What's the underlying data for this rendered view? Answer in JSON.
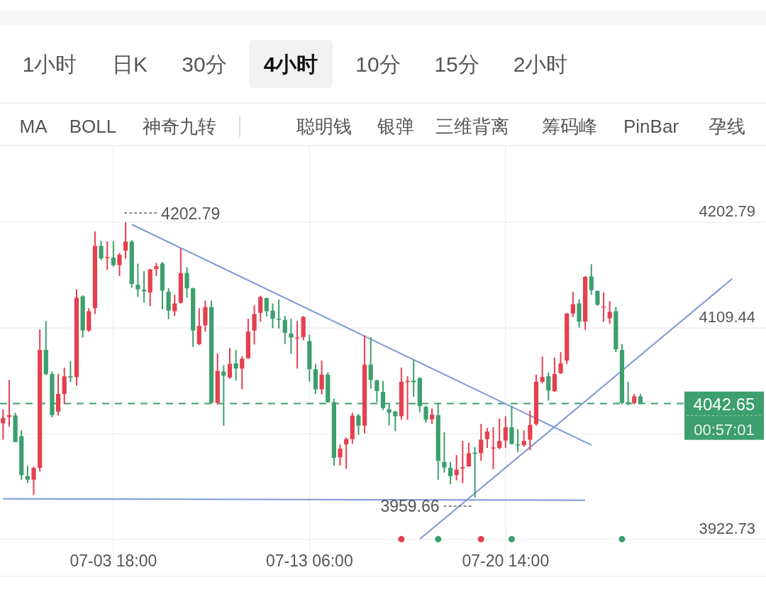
{
  "chart_data": {
    "type": "candlestick",
    "categories": [
      null,
      null,
      null,
      null,
      null,
      null,
      null,
      null,
      null,
      null,
      null,
      null,
      null,
      null,
      null,
      null,
      null,
      null,
      "07-03 18:00",
      null,
      null,
      null,
      null,
      null,
      null,
      null,
      null,
      null,
      null,
      null,
      null,
      null,
      null,
      null,
      null,
      null,
      null,
      null,
      null,
      null,
      null,
      null,
      null,
      null,
      null,
      null,
      null,
      null,
      null,
      null,
      "07-13 06:00",
      null,
      null,
      null,
      null,
      null,
      null,
      null,
      null,
      null,
      null,
      null,
      null,
      null,
      null,
      null,
      null,
      null,
      null,
      null,
      null,
      null,
      null,
      null,
      null,
      null,
      null,
      null,
      null,
      null,
      null,
      null,
      "07-20 14:00",
      null,
      null,
      null,
      null,
      null,
      null,
      null,
      null,
      null,
      null,
      null,
      null,
      null,
      null,
      null,
      null,
      null,
      null,
      null,
      null,
      null,
      null,
      null,
      null,
      null,
      null,
      null,
      null,
      null,
      null,
      null,
      null,
      null,
      null,
      null,
      null,
      null,
      null,
      null,
      null,
      null,
      null
    ],
    "ohlc": [
      [
        4025.3,
        4037.7,
        4010.8,
        4030.0
      ],
      [
        4030.9,
        4063.6,
        4022.2,
        4032.5
      ],
      [
        4032.1,
        4034.6,
        4008.7,
        4008.7
      ],
      [
        4013.9,
        4019.1,
        3975.5,
        3979.6
      ],
      [
        3978.6,
        3987.9,
        3972.4,
        3975.5
      ],
      [
        3975.5,
        3986.9,
        3962.0,
        3985.9
      ],
      [
        3985.9,
        4108.2,
        3982.8,
        4090.0
      ],
      [
        4090.0,
        4115.5,
        4067.8,
        4068.8
      ],
      [
        4068.8,
        4070.9,
        4030.5,
        4032.5
      ],
      [
        4035.6,
        4068.8,
        4032.1,
        4051.2
      ],
      [
        4051.2,
        4074.4,
        4042.5,
        4066.8
      ],
      [
        4066.8,
        4080.2,
        4061.6,
        4065.7
      ],
      [
        4066.1,
        4143.5,
        4058.5,
        4136.2
      ],
      [
        4137.3,
        4138.3,
        4101.0,
        4107.2
      ],
      [
        4107.2,
        4126.9,
        4106.2,
        4124.2
      ],
      [
        4126.9,
        4194.7,
        4121.7,
        4181.9
      ],
      [
        4181.9,
        4186.4,
        4169.4,
        4170.9
      ],
      [
        4171.5,
        4186.0,
        4160.7,
        4172.1
      ],
      [
        4171.5,
        4186.0,
        4163.6,
        4164.9
      ],
      [
        4164.9,
        4175.6,
        4155.3,
        4174.0
      ],
      [
        4177.7,
        4202.79,
        4170.5,
        4185.6
      ],
      [
        4185.6,
        4187.0,
        4144.9,
        4148.3
      ],
      [
        4147.6,
        4166.3,
        4136.9,
        4143.5
      ],
      [
        4143.3,
        4159.5,
        4131.7,
        4141.8
      ],
      [
        4140.8,
        4161.5,
        4128.6,
        4161.1
      ],
      [
        4161.5,
        4166.9,
        4155.3,
        4164.0
      ],
      [
        4166.3,
        4167.8,
        4125.9,
        4142.5
      ],
      [
        4141.4,
        4144.5,
        4117.2,
        4124.8
      ],
      [
        4124.2,
        4138.7,
        4120.1,
        4131.1
      ],
      [
        4131.7,
        4179.8,
        4131.1,
        4158.0
      ],
      [
        4158.0,
        4163.2,
        4136.2,
        4144.5
      ],
      [
        4144.5,
        4144.9,
        4092.7,
        4107.2
      ],
      [
        4095.2,
        4126.9,
        4094.3,
        4111.3
      ],
      [
        4111.8,
        4133.7,
        4106.2,
        4127.9
      ],
      [
        4127.9,
        4133.7,
        4042.9,
        4043.3
      ],
      [
        4043.3,
        4086.9,
        4041.9,
        4071.5
      ],
      [
        4070.9,
        4076.5,
        4023.2,
        4067.4
      ],
      [
        4065.7,
        4091.6,
        4064.7,
        4077.8
      ],
      [
        4078.2,
        4090.0,
        4063.2,
        4073.6
      ],
      [
        4073.6,
        4084.4,
        4055.3,
        4082.3
      ],
      [
        4082.7,
        4117.6,
        4082.3,
        4106.2
      ],
      [
        4107.2,
        4129.6,
        4094.8,
        4121.7
      ],
      [
        4122.8,
        4137.9,
        4115.1,
        4136.7
      ],
      [
        4135.8,
        4136.2,
        4119.6,
        4124.2
      ],
      [
        4124.8,
        4131.1,
        4109.3,
        4117.6
      ],
      [
        4117.6,
        4134.6,
        4108.9,
        4116.9
      ],
      [
        4116.5,
        4120.1,
        4095.2,
        4105.1
      ],
      [
        4104.5,
        4117.6,
        4086.5,
        4101.0
      ],
      [
        4100.6,
        4115.5,
        4073.6,
        4101.0
      ],
      [
        4101.4,
        4120.1,
        4098.5,
        4119.2
      ],
      [
        4097.9,
        4103.5,
        4062.0,
        4073.0
      ],
      [
        4073.0,
        4077.8,
        4051.2,
        4055.3
      ],
      [
        4055.3,
        4080.7,
        4050.8,
        4068.2
      ],
      [
        4068.2,
        4070.3,
        4043.3,
        4043.9
      ],
      [
        4043.9,
        4047.1,
        3987.9,
        3994.8
      ],
      [
        3995.2,
        4006.6,
        3987.9,
        4002.9
      ],
      [
        4006.6,
        4012.8,
        3985.2,
        4011.4
      ],
      [
        4011.4,
        4034.6,
        4007.2,
        4032.1
      ],
      [
        4032.1,
        4033.6,
        4014.9,
        4023.2
      ],
      [
        4023.2,
        4103.1,
        4016.4,
        4077.1
      ],
      [
        4077.1,
        4101.4,
        4055.8,
        4063.6
      ],
      [
        4063.2,
        4063.6,
        4043.9,
        4053.7
      ],
      [
        4052.9,
        4062.6,
        4037.1,
        4038.8
      ],
      [
        4037.7,
        4042.9,
        4023.2,
        4034.6
      ],
      [
        4035.6,
        4036.3,
        4018.4,
        4031.5
      ],
      [
        4031.5,
        4074.4,
        4028.4,
        4062.0
      ],
      [
        4062.0,
        4066.8,
        4028.4,
        4062.6
      ],
      [
        4063.0,
        4081.3,
        4048.7,
        4061.6
      ],
      [
        4065.1,
        4066.1,
        4035.0,
        4040.4
      ],
      [
        4039.8,
        4040.8,
        4025.9,
        4028.4
      ],
      [
        4028.8,
        4038.3,
        4024.7,
        4033.0
      ],
      [
        4032.5,
        4043.3,
        3975.5,
        3992.1
      ],
      [
        3991.1,
        4017.6,
        3981.7,
        3986.3
      ],
      [
        3985.9,
        3991.1,
        3971.4,
        3978.6
      ],
      [
        3979.6,
        3997.3,
        3974.9,
        3984.4
      ],
      [
        3985.2,
        4009.7,
        3972.4,
        3986.5
      ],
      [
        3987.3,
        4008.1,
        3986.9,
        3998.9
      ],
      [
        3999.4,
        4004.5,
        3959.66,
        3998.3
      ],
      [
        3998.9,
        4024.7,
        3992.1,
        4010.8
      ],
      [
        4011.4,
        4021.1,
        4003.5,
        4018.0
      ],
      [
        4003.1,
        4021.8,
        3984.8,
        4003.9
      ],
      [
        4003.5,
        4029.4,
        4002.5,
        4009.7
      ],
      [
        4010.1,
        4031.5,
        4003.5,
        4021.8
      ],
      [
        4021.8,
        4040.8,
        4006.6,
        4007.0
      ],
      [
        4006.6,
        4020.1,
        3999.8,
        4006.0
      ],
      [
        4006.0,
        4019.1,
        4004.5,
        4009.7
      ],
      [
        4010.8,
        4036.3,
        4001.4,
        4023.8
      ],
      [
        4024.7,
        4068.2,
        4023.2,
        4062.0
      ],
      [
        4062.0,
        4084.4,
        4060.5,
        4066.1
      ],
      [
        4066.8,
        4070.3,
        4045.4,
        4054.3
      ],
      [
        4053.7,
        4083.3,
        4052.9,
        4068.8
      ],
      [
        4069.5,
        4088.1,
        4068.8,
        4078.2
      ],
      [
        4080.7,
        4122.8,
        4077.8,
        4122.1
      ],
      [
        4122.1,
        4141.4,
        4119.2,
        4130.4
      ],
      [
        4131.1,
        4134.6,
        4109.7,
        4115.1
      ],
      [
        4115.1,
        4155.3,
        4107.8,
        4154.5
      ],
      [
        4154.9,
        4165.7,
        4138.7,
        4142.9
      ],
      [
        4142.0,
        4142.5,
        4129.0,
        4130.0
      ],
      [
        4127.9,
        4140.8,
        4114.9,
        4128.4
      ],
      [
        4118.0,
        4133.1,
        4113.0,
        4123.8
      ],
      [
        4124.2,
        4127.9,
        4088.1,
        4090.6
      ],
      [
        4090.0,
        4095.2,
        4041.9,
        4043.3
      ],
      [
        4043.9,
        4062.0,
        4041.2,
        4043.3
      ],
      [
        4043.3,
        4051.2,
        4041.9,
        4049.1
      ],
      [
        4049.1,
        4051.2,
        4042.65,
        4042.65
      ],
      null,
      null,
      null,
      null,
      null,
      null,
      null,
      null,
      null,
      null,
      null,
      null,
      null,
      null,
      null,
      null,
      null,
      null,
      null,
      null
    ],
    "colors": [
      "#e4404f",
      "#e4404f",
      "#3c9f6c",
      "#3c9f6c",
      "#3c9f6c",
      "#e4404f",
      "#e4404f",
      "#3c9f6c",
      "#3c9f6c",
      "#e4404f",
      "#e4404f",
      "#3c9f6c",
      "#e4404f",
      "#3c9f6c",
      "#e4404f",
      "#e4404f",
      "#3c9f6c",
      "#e4404f",
      "#3c9f6c",
      "#e4404f",
      "#e4404f",
      "#3c9f6c",
      "#3c9f6c",
      "#3c9f6c",
      "#e4404f",
      "#e4404f",
      "#3c9f6c",
      "#3c9f6c",
      "#e4404f",
      "#e4404f",
      "#3c9f6c",
      "#3c9f6c",
      "#e4404f",
      "#e4404f",
      "#3c9f6c",
      "#e4404f",
      "#3c9f6c",
      "#e4404f",
      "#3c9f6c",
      "#e4404f",
      "#e4404f",
      "#e4404f",
      "#e4404f",
      "#3c9f6c",
      "#3c9f6c",
      "#3c9f6c",
      "#3c9f6c",
      "#3c9f6c",
      "#e4404f",
      "#e4404f",
      "#3c9f6c",
      "#3c9f6c",
      "#e4404f",
      "#3c9f6c",
      "#3c9f6c",
      "#e4404f",
      "#e4404f",
      "#e4404f",
      "#3c9f6c",
      "#e4404f",
      "#3c9f6c",
      "#3c9f6c",
      "#3c9f6c",
      "#3c9f6c",
      "#3c9f6c",
      "#e4404f",
      "#e4404f",
      "#3c9f6c",
      "#3c9f6c",
      "#3c9f6c",
      "#e4404f",
      "#3c9f6c",
      "#3c9f6c",
      "#3c9f6c",
      "#e4404f",
      "#e4404f",
      "#e4404f",
      "#3c9f6c",
      "#e4404f",
      "#e4404f",
      "#e4404f",
      "#e4404f",
      "#e4404f",
      "#3c9f6c",
      "#3c9f6c",
      "#e4404f",
      "#e4404f",
      "#e4404f",
      "#e4404f",
      "#3c9f6c",
      "#e4404f",
      "#e4404f",
      "#e4404f",
      "#e4404f",
      "#3c9f6c",
      "#e4404f",
      "#3c9f6c",
      "#3c9f6c",
      "#e4404f",
      "#e4404f",
      "#3c9f6c",
      "#3c9f6c",
      "#3c9f6c",
      "#e4404f",
      "#3c9f6c",
      null,
      null,
      null,
      null,
      null,
      null,
      null,
      null,
      null,
      null,
      null,
      null,
      null,
      null,
      null,
      null,
      null,
      null,
      null,
      null
    ],
    "series": [
      {
        "type": "line",
        "color": "#7f97db",
        "values": [
          null,
          null,
          null,
          null,
          null,
          null,
          null,
          null,
          null,
          null,
          null,
          null,
          null,
          null,
          null,
          null,
          null,
          null,
          null,
          null,
          null,
          4200.8,
          null,
          null,
          null,
          null,
          null,
          null,
          null,
          null,
          null,
          null,
          null,
          null,
          null,
          null,
          null,
          null,
          null,
          null,
          null,
          null,
          null,
          null,
          null,
          null,
          null,
          null,
          null,
          null,
          null,
          null,
          null,
          null,
          null,
          null,
          null,
          null,
          null,
          null,
          null,
          null,
          null,
          null,
          null,
          null,
          null,
          null,
          null,
          null,
          null,
          null,
          null,
          null,
          null,
          null,
          null,
          null,
          null,
          null,
          null,
          null,
          null,
          null,
          null,
          null,
          null,
          null,
          null,
          null,
          null,
          null,
          null,
          null,
          null,
          null,
          4006.1,
          null,
          null,
          null,
          null,
          null,
          null,
          null,
          null,
          null,
          null,
          null,
          null,
          null,
          null,
          null,
          null,
          null,
          null,
          null,
          null,
          null,
          null,
          null,
          null,
          null,
          null,
          null,
          null
        ]
      },
      {
        "type": "line",
        "color": "#7f97db",
        "values": [
          null,
          null,
          null,
          null,
          null,
          null,
          null,
          null,
          null,
          null,
          null,
          null,
          null,
          null,
          null,
          null,
          null,
          null,
          null,
          null,
          null,
          null,
          null,
          null,
          null,
          null,
          null,
          null,
          null,
          null,
          null,
          null,
          null,
          null,
          null,
          null,
          null,
          null,
          null,
          null,
          null,
          null,
          null,
          null,
          null,
          null,
          null,
          null,
          null,
          null,
          null,
          null,
          null,
          null,
          null,
          null,
          null,
          null,
          null,
          null,
          null,
          null,
          null,
          null,
          null,
          null,
          null,
          null,
          3923,
          null,
          null,
          null,
          null,
          null,
          null,
          null,
          null,
          null,
          null,
          null,
          null,
          null,
          null,
          null,
          null,
          null,
          null,
          null,
          null,
          null,
          null,
          null,
          null,
          null,
          null,
          null,
          null,
          null,
          null,
          null,
          null,
          null,
          null,
          null,
          null,
          null,
          null,
          null,
          null,
          null,
          null,
          null,
          null,
          null,
          null,
          null,
          null,
          null,
          null,
          4153,
          null,
          null,
          null,
          null,
          null
        ]
      },
      {
        "type": "line",
        "color": "#7f97db",
        "values": [
          3958.6,
          null,
          null,
          null,
          null,
          null,
          null,
          null,
          null,
          null,
          null,
          null,
          null,
          null,
          null,
          null,
          null,
          null,
          null,
          null,
          null,
          null,
          null,
          null,
          null,
          null,
          null,
          null,
          null,
          null,
          null,
          null,
          null,
          null,
          null,
          null,
          null,
          null,
          null,
          null,
          null,
          null,
          null,
          null,
          null,
          null,
          null,
          null,
          null,
          null,
          null,
          null,
          null,
          null,
          null,
          null,
          null,
          null,
          null,
          null,
          null,
          null,
          null,
          null,
          null,
          null,
          null,
          null,
          null,
          null,
          null,
          null,
          null,
          null,
          null,
          null,
          null,
          null,
          null,
          null,
          null,
          null,
          null,
          null,
          null,
          null,
          null,
          null,
          null,
          null,
          null,
          null,
          null,
          null,
          null,
          3957.4,
          null,
          null,
          null,
          null,
          null,
          null,
          null,
          null,
          null,
          null,
          null,
          null,
          null,
          null,
          null,
          null,
          null,
          null,
          null,
          null,
          null,
          null,
          null,
          null,
          null,
          null,
          null,
          null,
          null
        ]
      },
      {
        "type": "scatter",
        "color": "#e4404f",
        "values": [
          null,
          null,
          null,
          null,
          null,
          null,
          null,
          null,
          null,
          null,
          null,
          null,
          null,
          null,
          null,
          null,
          null,
          null,
          null,
          null,
          null,
          null,
          null,
          null,
          null,
          null,
          null,
          null,
          null,
          null,
          null,
          null,
          null,
          null,
          null,
          null,
          null,
          null,
          null,
          null,
          null,
          null,
          null,
          null,
          null,
          null,
          null,
          null,
          null,
          null,
          null,
          null,
          null,
          null,
          null,
          null,
          null,
          null,
          null,
          null,
          null,
          null,
          null,
          null,
          null,
          3923,
          null,
          null,
          null,
          null,
          null,
          null,
          null,
          null,
          null,
          null,
          null,
          null,
          3923,
          null,
          null,
          null,
          null,
          null,
          null,
          null,
          null,
          null,
          null,
          null,
          null,
          null,
          null,
          null,
          null,
          null,
          null,
          null,
          null,
          null,
          null,
          null,
          null,
          null,
          null,
          null,
          null,
          null,
          null,
          null,
          null,
          null,
          null,
          null,
          null,
          null,
          null,
          null,
          null,
          null,
          null,
          null,
          null,
          null,
          null
        ]
      },
      {
        "type": "scatter",
        "color": "#3c9f6c",
        "values": [
          null,
          null,
          null,
          null,
          null,
          null,
          null,
          null,
          null,
          null,
          null,
          null,
          null,
          null,
          null,
          null,
          null,
          null,
          null,
          null,
          null,
          null,
          null,
          null,
          null,
          null,
          null,
          null,
          null,
          null,
          null,
          null,
          null,
          null,
          null,
          null,
          null,
          null,
          null,
          null,
          null,
          null,
          null,
          null,
          null,
          null,
          null,
          null,
          null,
          null,
          null,
          null,
          null,
          null,
          null,
          null,
          null,
          null,
          null,
          null,
          null,
          null,
          null,
          null,
          null,
          null,
          null,
          null,
          null,
          null,
          null,
          3923,
          null,
          null,
          null,
          null,
          null,
          null,
          null,
          null,
          null,
          null,
          null,
          3923,
          null,
          null,
          null,
          null,
          null,
          null,
          null,
          null,
          null,
          null,
          null,
          null,
          null,
          null,
          null,
          null,
          null,
          3923,
          null,
          null,
          null,
          null,
          null,
          null,
          null,
          null,
          null,
          null,
          null,
          null,
          null,
          null,
          null,
          null,
          null,
          null,
          null,
          null,
          null,
          null,
          null
        ]
      }
    ],
    "ylim": [
      3922.73,
      4270.5
    ],
    "yticks": [
      4202.79,
      4109.44,
      {
        "value": 4016.09,
        "label": null
      },
      3922.73
    ],
    "grid": true,
    "ref_lines": [
      {
        "axis": "y",
        "value": 4042.65,
        "label": "4042.65",
        "color": "#3c9f6c",
        "line_style": "dashed"
      }
    ],
    "annotations": [
      "1小时",
      "日K",
      "30分",
      "4小时",
      "10分",
      "15分",
      "2小时",
      "MA",
      "BOLL",
      "神奇九转",
      "聪明钱",
      "银弹",
      "三维背离",
      "筹码峰",
      "PinBar",
      "孕线",
      "4202.79",
      "3959.66",
      "00:57:01"
    ]
  }
}
